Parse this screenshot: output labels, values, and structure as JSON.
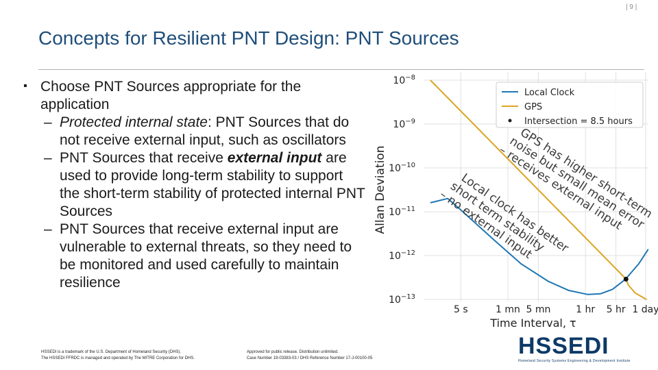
{
  "header": {
    "page_number": "| 9 |",
    "title": "Concepts for Resilient PNT Design: PNT Sources"
  },
  "bullets": {
    "main": "Choose PNT Sources appropriate for the application",
    "sub1_emph": "Protected internal state",
    "sub1_rest": ": PNT Sources that do not receive external input, such as oscillators",
    "sub2_pre": "PNT Sources that receive ",
    "sub2_emph": "external input",
    "sub2_rest": " are used to provide long-term stability to support the short-term stability of protected internal PNT Sources",
    "sub3": "PNT Sources that receive external input are vulnerable to external threats, so they need to be monitored and used carefully to maintain resilience"
  },
  "footer": {
    "left_1": "HSSEDI is a trademark of the U.S. Department of Homeland Security (DHS).",
    "left_2": "The HSSEDI FFRDC is managed and operated by The MITRE Corporation for DHS.",
    "right_1": "Approved for public release. Distribution unlimited.",
    "right_2": "Case Number 19-03383-03 / DHS Reference Number 17-J-00100-05"
  },
  "logo": {
    "text": "HSSEDI",
    "subtitle": "Homeland Security Systems Engineering & Development Institute"
  },
  "colors": {
    "title": "#1f4e79",
    "local_clock": "#1f77b4",
    "gps": "#daa520"
  },
  "chart_data": {
    "type": "line",
    "xlabel": "Time Interval, τ",
    "ylabel": "Allan Deviation",
    "x_scale": "log",
    "y_scale": "log",
    "x_ticks": [
      {
        "label": "5 s",
        "value": 5
      },
      {
        "label": "1 mn",
        "value": 60
      },
      {
        "label": "5 mn",
        "value": 300
      },
      {
        "label": "1 hr",
        "value": 3600
      },
      {
        "label": "5 hr",
        "value": 18000
      },
      {
        "label": "1 day",
        "value": 86400
      }
    ],
    "y_ticks": [
      {
        "label": "10",
        "exp": "−8",
        "value": 1e-08
      },
      {
        "label": "10",
        "exp": "−9",
        "value": 1e-09
      },
      {
        "label": "10",
        "exp": "−10",
        "value": 1e-10
      },
      {
        "label": "10",
        "exp": "−11",
        "value": 1e-11
      },
      {
        "label": "10",
        "exp": "−12",
        "value": 1e-12
      },
      {
        "label": "10",
        "exp": "−13",
        "value": 1e-13
      }
    ],
    "xlim": [
      0.7,
      100000
    ],
    "ylim": [
      1e-13,
      1e-08
    ],
    "legend_position": "top-right",
    "series": [
      {
        "name": "Local Clock",
        "color": "#1f77b4",
        "x": [
          1,
          2.5,
          5,
          30,
          120,
          500,
          1500,
          4000,
          8000,
          15000,
          30000,
          60000,
          100000
        ],
        "y": [
          1.6e-11,
          2e-11,
          1.1e-11,
          2.2e-12,
          6.5e-13,
          2.6e-13,
          1.6e-13,
          1.3e-13,
          1.35e-13,
          1.7e-13,
          2.9e-13,
          6.5e-13,
          1.4e-12
        ]
      },
      {
        "name": "GPS",
        "color": "#daa520",
        "x": [
          1,
          30000,
          35000,
          50000,
          90000
        ],
        "y": [
          1e-08,
          3e-13,
          2.1e-13,
          1.4e-13,
          1e-13
        ]
      }
    ],
    "intersection": {
      "label": "Intersection = 8.5 hours",
      "x": 30600,
      "y": 2.9e-13
    },
    "annotations": [
      {
        "line1": "GPS has higher short-term",
        "line2": "noise but small mean error",
        "line3": "– receives external input"
      },
      {
        "line1": "Local clock has better",
        "line2": "short term stability",
        "line3": "– no external input"
      }
    ]
  }
}
